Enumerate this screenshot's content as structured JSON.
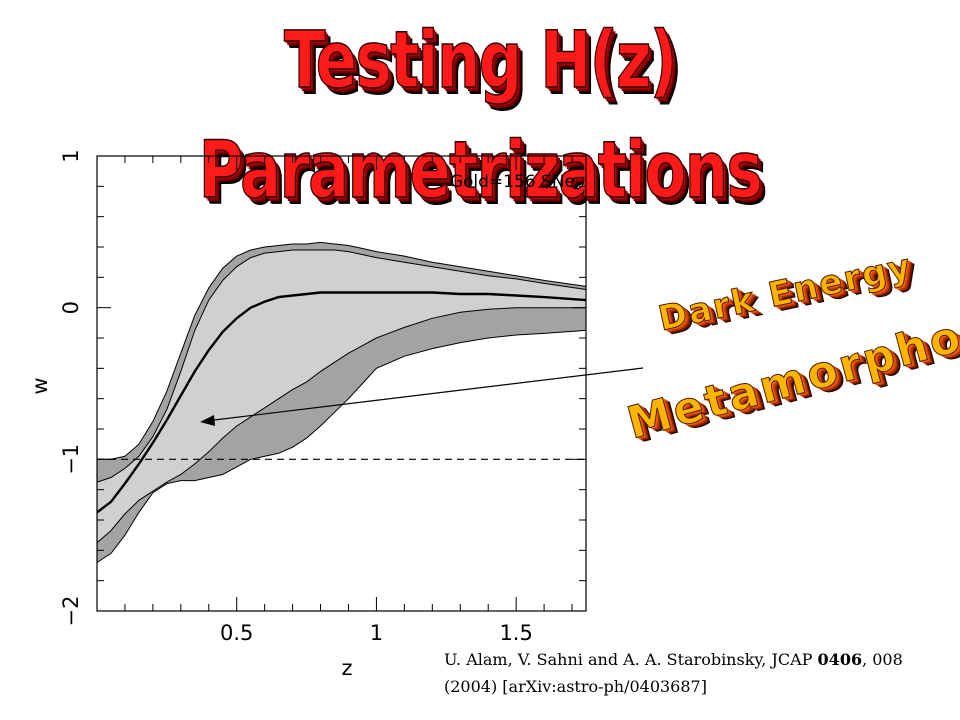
{
  "slide": {
    "title": "Testing H(z) Parametrizations",
    "word_art": [
      "Dark Energy",
      "Metamorphosis"
    ],
    "citation": {
      "line1_before": "U. Alam, V. Sahni and A. A. Starobinsky, JCAP ",
      "line1_volume": "0406",
      "line1_after": ", 008",
      "line2": "(2004) [arXiv:astro-ph/0403687]"
    },
    "colors": {
      "title": "#ff1a1a",
      "word_art": "#ffb400"
    }
  },
  "chart_data": {
    "type": "line",
    "xlabel": "z",
    "ylabel": "w",
    "xlim": [
      0,
      1.75
    ],
    "ylim": [
      -2,
      1
    ],
    "x_ticks": [
      "0.5",
      "1",
      "1.5"
    ],
    "y_ticks": [
      "1",
      "0",
      "−1",
      "−2"
    ],
    "annotation": "Gold=156 SNe",
    "reference_line": {
      "y": -1,
      "style": "dashed"
    },
    "grid": false,
    "colors": {
      "outer_band": "#a3a3a3",
      "inner_band": "#d0d0d0",
      "best_fit": "#000000"
    },
    "z": [
      0,
      0.05,
      0.1,
      0.15,
      0.2,
      0.25,
      0.3,
      0.35,
      0.4,
      0.45,
      0.5,
      0.55,
      0.6,
      0.65,
      0.7,
      0.75,
      0.8,
      0.85,
      0.9,
      0.95,
      1.0,
      1.1,
      1.2,
      1.3,
      1.4,
      1.5,
      1.6,
      1.75
    ],
    "series": [
      {
        "role": "outer_upper",
        "values": [
          -1.0,
          -1.0,
          -0.98,
          -0.9,
          -0.75,
          -0.55,
          -0.3,
          -0.05,
          0.13,
          0.26,
          0.34,
          0.38,
          0.4,
          0.41,
          0.42,
          0.42,
          0.43,
          0.42,
          0.41,
          0.39,
          0.37,
          0.34,
          0.3,
          0.27,
          0.24,
          0.21,
          0.18,
          0.14
        ]
      },
      {
        "role": "inner_upper",
        "values": [
          -1.15,
          -1.12,
          -1.06,
          -0.98,
          -0.85,
          -0.67,
          -0.42,
          -0.15,
          0.05,
          0.18,
          0.27,
          0.33,
          0.36,
          0.37,
          0.38,
          0.38,
          0.38,
          0.38,
          0.37,
          0.35,
          0.33,
          0.3,
          0.27,
          0.24,
          0.21,
          0.19,
          0.16,
          0.12
        ]
      },
      {
        "name": "",
        "role": "best_fit",
        "values": [
          -1.35,
          -1.28,
          -1.16,
          -1.03,
          -0.89,
          -0.74,
          -0.58,
          -0.42,
          -0.28,
          -0.16,
          -0.07,
          0.0,
          0.04,
          0.07,
          0.08,
          0.09,
          0.1,
          0.1,
          0.1,
          0.1,
          0.1,
          0.1,
          0.1,
          0.09,
          0.09,
          0.08,
          0.07,
          0.05
        ]
      },
      {
        "role": "inner_lower",
        "values": [
          -1.55,
          -1.47,
          -1.36,
          -1.27,
          -1.21,
          -1.15,
          -1.1,
          -1.03,
          -0.95,
          -0.86,
          -0.78,
          -0.72,
          -0.66,
          -0.6,
          -0.54,
          -0.49,
          -0.42,
          -0.36,
          -0.3,
          -0.25,
          -0.2,
          -0.13,
          -0.07,
          -0.03,
          -0.01,
          0.0,
          0.0,
          0.0
        ]
      },
      {
        "role": "outer_lower",
        "values": [
          -1.68,
          -1.62,
          -1.5,
          -1.35,
          -1.22,
          -1.16,
          -1.14,
          -1.14,
          -1.12,
          -1.1,
          -1.05,
          -1.0,
          -0.98,
          -0.96,
          -0.92,
          -0.86,
          -0.78,
          -0.69,
          -0.6,
          -0.5,
          -0.4,
          -0.32,
          -0.27,
          -0.23,
          -0.2,
          -0.18,
          -0.17,
          -0.15
        ]
      }
    ]
  }
}
